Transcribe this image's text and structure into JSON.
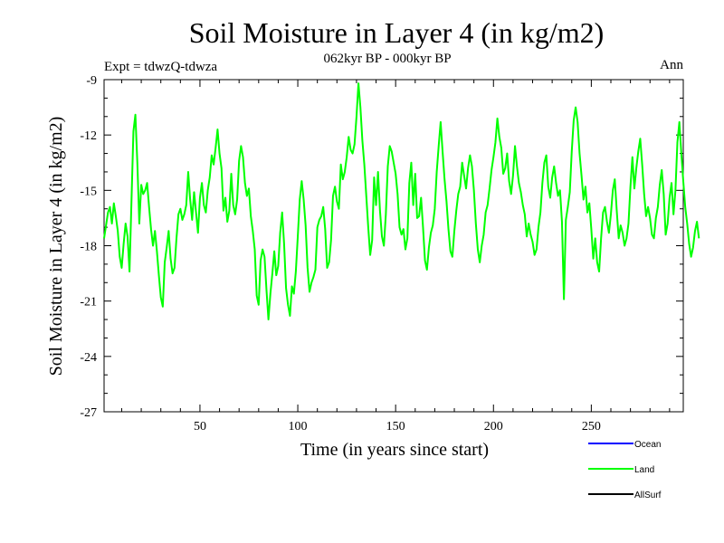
{
  "chart_data": {
    "type": "line",
    "title": "Soil Moisture in Layer 4 (in kg/m2)",
    "subtitle": "062kyr BP - 000kyr BP",
    "experiment_label": "Expt = tdwzQ-tdwza",
    "season_label": "Ann",
    "xlabel": "Time (in years since start)",
    "ylabel": "Soil Moisture in Layer 4 (in kg/m2)",
    "xlim": [
      1,
      297
    ],
    "ylim": [
      -27,
      -9
    ],
    "xticks": [
      50,
      100,
      150,
      200,
      250
    ],
    "xtick_labels": [
      "50",
      "100",
      "150",
      "200",
      "250"
    ],
    "yticks": [
      -9,
      -12,
      -15,
      -18,
      -21,
      -24,
      -27
    ],
    "ytick_labels": [
      "-9",
      "-12",
      "-15",
      "-18",
      "-21",
      "-24",
      "-27"
    ],
    "legend": [
      {
        "name": "Ocean",
        "color": "#0000ff"
      },
      {
        "name": "Land",
        "color": "#00ff00"
      },
      {
        "name": "AllSurf",
        "color": "#000000"
      }
    ],
    "series": [
      {
        "name": "Land",
        "color": "#00ff00",
        "x_start": 1,
        "x_step": 1,
        "values": [
          -17.6,
          -16.9,
          -16.2,
          -15.9,
          -16.8,
          -15.7,
          -16.4,
          -17.2,
          -18.6,
          -19.2,
          -17.9,
          -16.8,
          -17.5,
          -19.4,
          -15.6,
          -11.8,
          -10.9,
          -13.5,
          -16.8,
          -14.7,
          -15.2,
          -15.0,
          -14.6,
          -15.9,
          -17.1,
          -18.0,
          -17.2,
          -18.3,
          -19.6,
          -20.8,
          -21.3,
          -18.9,
          -18.1,
          -17.2,
          -18.7,
          -19.5,
          -19.2,
          -17.6,
          -16.3,
          -16.0,
          -16.6,
          -16.3,
          -15.8,
          -14.0,
          -15.5,
          -16.6,
          -15.1,
          -16.2,
          -17.3,
          -15.4,
          -14.6,
          -15.8,
          -16.2,
          -15.0,
          -14.3,
          -13.1,
          -13.6,
          -12.7,
          -11.7,
          -13.0,
          -13.8,
          -16.1,
          -15.4,
          -16.7,
          -16.1,
          -14.1,
          -15.8,
          -16.3,
          -15.5,
          -13.4,
          -12.6,
          -13.2,
          -14.6,
          -15.3,
          -14.9,
          -16.4,
          -17.2,
          -18.2,
          -20.7,
          -21.2,
          -18.8,
          -18.2,
          -18.6,
          -20.4,
          -22.0,
          -20.6,
          -19.5,
          -18.3,
          -19.6,
          -19.1,
          -17.3,
          -16.2,
          -17.9,
          -20.3,
          -21.2,
          -21.8,
          -20.2,
          -20.6,
          -19.4,
          -17.5,
          -15.5,
          -14.5,
          -15.5,
          -16.9,
          -19.2,
          -20.5,
          -20.0,
          -19.7,
          -19.3,
          -17.0,
          -16.6,
          -16.4,
          -15.9,
          -17.1,
          -19.2,
          -18.9,
          -17.7,
          -15.3,
          -14.8,
          -15.6,
          -16.0,
          -13.6,
          -14.4,
          -14.0,
          -13.2,
          -12.1,
          -12.8,
          -13.0,
          -12.5,
          -11.0,
          -9.2,
          -10.5,
          -12.3,
          -13.6,
          -15.3,
          -17.0,
          -18.5,
          -17.7,
          -14.3,
          -15.8,
          -14.0,
          -16.1,
          -17.5,
          -18.0,
          -16.3,
          -13.7,
          -12.6,
          -12.9,
          -13.5,
          -14.1,
          -15.2,
          -17.0,
          -17.4,
          -17.1,
          -18.2,
          -17.6,
          -14.6,
          -13.5,
          -15.8,
          -14.1,
          -16.5,
          -16.4,
          -15.4,
          -17.0,
          -18.8,
          -19.3,
          -18.1,
          -17.3,
          -16.9,
          -16.0,
          -14.0,
          -12.6,
          -11.3,
          -12.9,
          -14.4,
          -15.6,
          -17.1,
          -18.3,
          -18.6,
          -17.2,
          -16.1,
          -15.2,
          -14.8,
          -13.5,
          -14.2,
          -14.9,
          -13.8,
          -13.1,
          -13.7,
          -15.0,
          -16.8,
          -18.2,
          -18.9,
          -18.0,
          -17.4,
          -16.2,
          -15.8,
          -14.9,
          -13.9,
          -13.2,
          -12.4,
          -11.1,
          -12.1,
          -12.7,
          -14.1,
          -13.8,
          -13.0,
          -14.5,
          -15.2,
          -14.2,
          -12.6,
          -13.7,
          -14.6,
          -15.1,
          -15.8,
          -16.3,
          -17.5,
          -16.8,
          -17.4,
          -17.8,
          -18.5,
          -18.2,
          -17.0,
          -16.2,
          -14.6,
          -13.5,
          -13.1,
          -14.8,
          -15.4,
          -14.3,
          -13.7,
          -14.6,
          -15.3,
          -15.0,
          -16.7,
          -20.9,
          -16.6,
          -15.9,
          -15.1,
          -12.9,
          -11.2,
          -10.5,
          -11.3,
          -13.0,
          -14.2,
          -15.5,
          -14.8,
          -16.2,
          -15.7,
          -17.1,
          -18.7,
          -17.6,
          -18.9,
          -19.4,
          -17.6,
          -16.2,
          -15.9,
          -16.7,
          -17.3,
          -16.3,
          -15.0,
          -14.4,
          -16.1,
          -17.6,
          -16.9,
          -17.3,
          -18.0,
          -17.6,
          -16.8,
          -14.8,
          -13.2,
          -14.9,
          -13.8,
          -12.9,
          -12.2,
          -13.6,
          -15.2,
          -16.4,
          -15.9,
          -16.5,
          -17.4,
          -17.6,
          -16.5,
          -15.9,
          -14.7,
          -13.9,
          -15.2,
          -17.4,
          -16.8,
          -15.4,
          -14.6,
          -16.3,
          -15.0,
          -12.4,
          -11.3,
          -13.0,
          -14.5,
          -15.9,
          -16.8,
          -17.9,
          -18.6,
          -18.1,
          -17.2,
          -16.7,
          -17.6
        ]
      }
    ]
  }
}
